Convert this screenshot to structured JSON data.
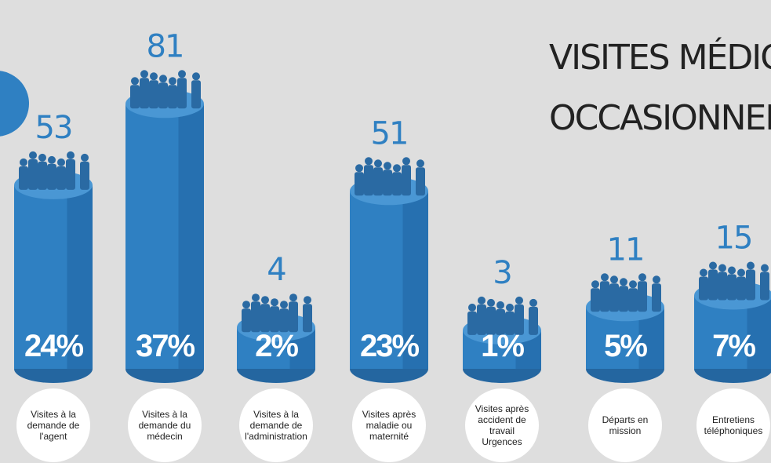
{
  "chart_data": {
    "type": "bar",
    "title_lines": [
      "VISITES MÉDICALES",
      "OCCASIONNELLES"
    ],
    "categories": [
      "Visites à la demande de l'agent",
      "Visites à la demande du médecin",
      "Visites à la demande de l'administration",
      "Visites après maladie ou maternité",
      "Visites après accident de travail Urgences",
      "Départs en mission",
      "Entretiens téléphoniques"
    ],
    "values": [
      53,
      81,
      4,
      51,
      3,
      11,
      15
    ],
    "color": "#2f80c2",
    "shares": {
      "values": [
        24,
        37,
        2,
        23,
        1,
        5,
        7
      ],
      "value_labels": [
        "24%",
        "37%",
        "2%",
        "23%",
        "1%",
        "5%",
        "7%"
      ]
    }
  }
}
